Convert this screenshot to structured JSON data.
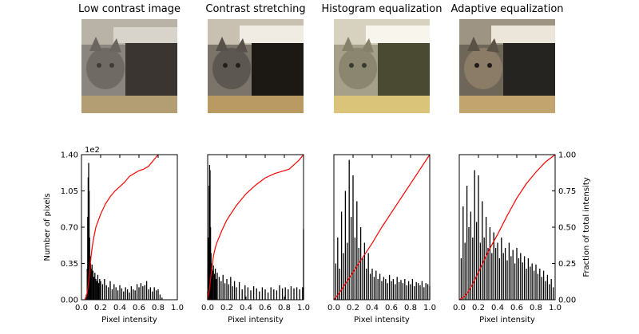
{
  "colors": {
    "histogram": "#000000",
    "cdf": "#ff0000",
    "axes": "#000000"
  },
  "images": [
    {
      "title": "Low contrast image",
      "variant": "low"
    },
    {
      "title": "Contrast stretching",
      "variant": "stretch"
    },
    {
      "title": "Histogram equalization",
      "variant": "histeq"
    },
    {
      "title": "Adaptive equalization",
      "variant": "adapt"
    }
  ],
  "chart_data": [
    {
      "type": "histogram+cdf",
      "title": "Low contrast image",
      "xlabel": "Pixel intensity",
      "ylabel": "Number of pixels",
      "y_scale_label": "1e2",
      "x_ticks": [
        "0.0",
        "0.2",
        "0.4",
        "0.6",
        "0.8",
        "1.0"
      ],
      "y_ticks": [
        "0.00",
        "0.35",
        "0.70",
        "1.05",
        "1.40"
      ],
      "xlim": [
        0,
        1
      ],
      "ylim": [
        0,
        1.4
      ],
      "hist_x": [
        0.04,
        0.05,
        0.06,
        0.065,
        0.07,
        0.075,
        0.08,
        0.085,
        0.09,
        0.095,
        0.1,
        0.11,
        0.12,
        0.13,
        0.14,
        0.15,
        0.16,
        0.17,
        0.18,
        0.19,
        0.2,
        0.22,
        0.24,
        0.26,
        0.28,
        0.3,
        0.32,
        0.34,
        0.36,
        0.38,
        0.4,
        0.42,
        0.44,
        0.46,
        0.48,
        0.5,
        0.52,
        0.54,
        0.56,
        0.58,
        0.6,
        0.62,
        0.64,
        0.66,
        0.68,
        0.7,
        0.72,
        0.74,
        0.76,
        0.78,
        0.8,
        0.82,
        0.84
      ],
      "hist_y": [
        0.02,
        0.05,
        0.3,
        0.8,
        1.18,
        1.32,
        1.05,
        0.6,
        0.42,
        0.35,
        0.3,
        0.34,
        0.28,
        0.22,
        0.26,
        0.2,
        0.18,
        0.24,
        0.16,
        0.2,
        0.18,
        0.15,
        0.2,
        0.14,
        0.12,
        0.18,
        0.1,
        0.15,
        0.12,
        0.09,
        0.14,
        0.11,
        0.08,
        0.12,
        0.1,
        0.07,
        0.13,
        0.1,
        0.09,
        0.15,
        0.12,
        0.16,
        0.13,
        0.14,
        0.18,
        0.1,
        0.12,
        0.08,
        0.12,
        0.09,
        0.1,
        0.05,
        0.02
      ],
      "cdf_x": [
        0.04,
        0.06,
        0.08,
        0.1,
        0.12,
        0.15,
        0.2,
        0.25,
        0.3,
        0.35,
        0.4,
        0.45,
        0.5,
        0.55,
        0.6,
        0.65,
        0.7,
        0.75,
        0.8
      ],
      "cdf_y": [
        0.0,
        0.05,
        0.15,
        0.3,
        0.4,
        0.5,
        0.59,
        0.66,
        0.71,
        0.75,
        0.78,
        0.81,
        0.85,
        0.87,
        0.89,
        0.9,
        0.92,
        0.96,
        1.0
      ]
    },
    {
      "type": "histogram+cdf",
      "title": "Contrast stretching",
      "xlabel": "Pixel intensity",
      "x_ticks": [
        "0.0",
        "0.2",
        "0.4",
        "0.6",
        "0.8",
        "1.0"
      ],
      "xlim": [
        0,
        1
      ],
      "ylim": [
        0,
        1.4
      ],
      "hist_x": [
        0.0,
        0.005,
        0.01,
        0.015,
        0.02,
        0.025,
        0.03,
        0.035,
        0.04,
        0.045,
        0.05,
        0.06,
        0.07,
        0.08,
        0.09,
        0.1,
        0.12,
        0.14,
        0.16,
        0.18,
        0.2,
        0.22,
        0.24,
        0.26,
        0.28,
        0.3,
        0.33,
        0.36,
        0.39,
        0.42,
        0.45,
        0.48,
        0.51,
        0.54,
        0.57,
        0.6,
        0.63,
        0.66,
        0.69,
        0.72,
        0.75,
        0.78,
        0.81,
        0.84,
        0.87,
        0.9,
        0.93,
        0.96,
        0.99,
        1.0
      ],
      "hist_y": [
        0.08,
        0.3,
        0.6,
        1.1,
        1.3,
        1.25,
        0.7,
        0.45,
        0.35,
        0.3,
        0.28,
        0.33,
        0.25,
        0.3,
        0.2,
        0.26,
        0.22,
        0.18,
        0.24,
        0.16,
        0.2,
        0.15,
        0.22,
        0.13,
        0.18,
        0.12,
        0.17,
        0.1,
        0.14,
        0.12,
        0.09,
        0.13,
        0.11,
        0.08,
        0.12,
        0.1,
        0.07,
        0.12,
        0.1,
        0.09,
        0.14,
        0.11,
        0.12,
        0.1,
        0.13,
        0.11,
        0.12,
        0.1,
        0.12,
        0.68
      ],
      "cdf_x": [
        0.0,
        0.02,
        0.04,
        0.06,
        0.08,
        0.1,
        0.15,
        0.2,
        0.25,
        0.3,
        0.4,
        0.5,
        0.6,
        0.7,
        0.8,
        0.85,
        0.9,
        0.95,
        1.0
      ],
      "cdf_y": [
        0.0,
        0.08,
        0.2,
        0.3,
        0.36,
        0.4,
        0.48,
        0.55,
        0.6,
        0.65,
        0.73,
        0.79,
        0.84,
        0.87,
        0.89,
        0.9,
        0.93,
        0.96,
        1.0
      ]
    },
    {
      "type": "histogram+cdf",
      "title": "Histogram equalization",
      "xlabel": "Pixel intensity",
      "x_ticks": [
        "0.0",
        "0.2",
        "0.4",
        "0.6",
        "0.8",
        "1.0"
      ],
      "xlim": [
        0,
        1
      ],
      "ylim": [
        0,
        1.4
      ],
      "hist_x": [
        0.02,
        0.04,
        0.06,
        0.08,
        0.1,
        0.12,
        0.14,
        0.16,
        0.18,
        0.2,
        0.22,
        0.24,
        0.26,
        0.28,
        0.3,
        0.32,
        0.34,
        0.36,
        0.38,
        0.4,
        0.42,
        0.44,
        0.46,
        0.48,
        0.5,
        0.52,
        0.54,
        0.56,
        0.58,
        0.6,
        0.62,
        0.64,
        0.66,
        0.68,
        0.7,
        0.72,
        0.74,
        0.76,
        0.78,
        0.8,
        0.82,
        0.84,
        0.86,
        0.88,
        0.9,
        0.92,
        0.94,
        0.96,
        0.98,
        1.0
      ],
      "hist_y": [
        0.35,
        0.6,
        0.3,
        0.85,
        0.45,
        1.05,
        0.55,
        1.35,
        0.8,
        1.2,
        0.6,
        0.95,
        0.5,
        0.7,
        0.4,
        0.55,
        0.3,
        0.45,
        0.25,
        0.3,
        0.22,
        0.28,
        0.2,
        0.25,
        0.18,
        0.22,
        0.2,
        0.16,
        0.24,
        0.18,
        0.2,
        0.15,
        0.22,
        0.17,
        0.19,
        0.16,
        0.2,
        0.14,
        0.18,
        0.15,
        0.2,
        0.13,
        0.17,
        0.16,
        0.14,
        0.18,
        0.12,
        0.16,
        0.15,
        0.13
      ],
      "cdf_x": [
        0.0,
        0.05,
        0.1,
        0.2,
        0.3,
        0.4,
        0.5,
        0.6,
        0.7,
        0.8,
        0.9,
        1.0
      ],
      "cdf_y": [
        0.0,
        0.04,
        0.09,
        0.19,
        0.29,
        0.39,
        0.5,
        0.6,
        0.7,
        0.8,
        0.9,
        1.0
      ]
    },
    {
      "type": "histogram+cdf",
      "title": "Adaptive equalization",
      "xlabel": "Pixel intensity",
      "ylabel_right": "Fraction of total intensity",
      "x_ticks": [
        "0.0",
        "0.2",
        "0.4",
        "0.6",
        "0.8",
        "1.0"
      ],
      "y2_ticks": [
        "0.00",
        "0.25",
        "0.50",
        "0.75",
        "1.00"
      ],
      "xlim": [
        0,
        1
      ],
      "ylim": [
        0,
        1.4
      ],
      "hist_x": [
        0.02,
        0.04,
        0.06,
        0.08,
        0.1,
        0.12,
        0.14,
        0.16,
        0.18,
        0.2,
        0.22,
        0.24,
        0.26,
        0.28,
        0.3,
        0.32,
        0.34,
        0.36,
        0.38,
        0.4,
        0.42,
        0.44,
        0.46,
        0.48,
        0.5,
        0.52,
        0.54,
        0.56,
        0.58,
        0.6,
        0.62,
        0.64,
        0.66,
        0.68,
        0.7,
        0.72,
        0.74,
        0.76,
        0.78,
        0.8,
        0.82,
        0.84,
        0.86,
        0.88,
        0.9,
        0.92,
        0.94,
        0.96,
        0.98
      ],
      "hist_y": [
        0.4,
        0.9,
        0.55,
        1.1,
        0.7,
        0.85,
        0.6,
        1.25,
        0.75,
        1.2,
        0.55,
        0.95,
        0.6,
        0.8,
        0.5,
        0.7,
        0.45,
        0.65,
        0.5,
        0.55,
        0.4,
        0.6,
        0.45,
        0.5,
        0.38,
        0.55,
        0.42,
        0.48,
        0.35,
        0.5,
        0.4,
        0.45,
        0.36,
        0.42,
        0.3,
        0.4,
        0.32,
        0.35,
        0.28,
        0.34,
        0.25,
        0.3,
        0.22,
        0.28,
        0.18,
        0.24,
        0.15,
        0.2,
        0.12
      ],
      "cdf_x": [
        0.0,
        0.05,
        0.1,
        0.15,
        0.2,
        0.3,
        0.4,
        0.5,
        0.6,
        0.7,
        0.8,
        0.9,
        1.0
      ],
      "cdf_y": [
        0.0,
        0.02,
        0.06,
        0.12,
        0.19,
        0.33,
        0.45,
        0.58,
        0.7,
        0.8,
        0.88,
        0.95,
        1.0
      ]
    }
  ]
}
